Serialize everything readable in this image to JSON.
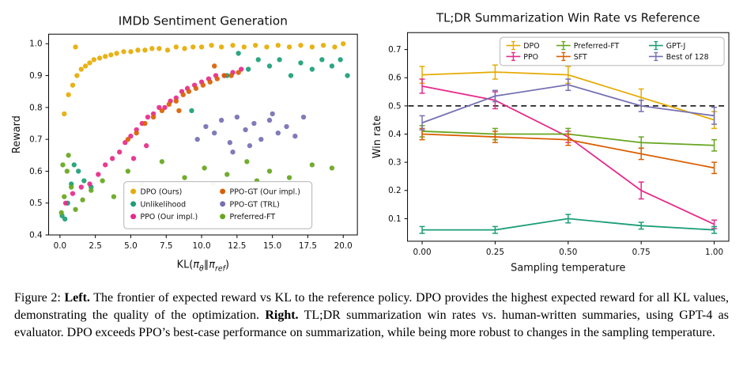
{
  "figure": {
    "caption": {
      "segments": [
        {
          "text": "Figure 2: ",
          "bold": false
        },
        {
          "text": "Left.",
          "bold": true
        },
        {
          "text": " The frontier of expected reward vs KL to the reference policy. DPO provides the highest expected reward for all KL values, demonstrating the quality of the optimization. ",
          "bold": false
        },
        {
          "text": "Right.",
          "bold": true
        },
        {
          "text": " TL;DR summarization win rates vs. human-written summaries, using GPT-4 as evaluator. DPO exceeds PPO’s best-case performance on summarization, while being more robust to changes in the sampling temperature.",
          "bold": false
        }
      ]
    }
  },
  "chart_data": [
    {
      "type": "scatter",
      "title": "IMDb Sentiment Generation",
      "ylabel": "Reward",
      "xlabel_plain": "KL(πθ∥πref)",
      "xlabel_parts": [
        {
          "t": "KL("
        },
        {
          "t": "π",
          "i": true
        },
        {
          "t": "θ",
          "i": true,
          "sub": true
        },
        {
          "t": "∥"
        },
        {
          "t": "π",
          "i": true
        },
        {
          "t": "ref",
          "i": true,
          "sub": true
        },
        {
          "t": ")"
        }
      ],
      "xlim": [
        -0.8,
        21.0
      ],
      "ylim": [
        0.4,
        1.03
      ],
      "xticks": [
        0.0,
        2.5,
        5.0,
        7.5,
        10.0,
        12.5,
        15.0,
        17.5,
        20.0
      ],
      "xtick_labels": [
        "0.0",
        "2.5",
        "5.0",
        "7.5",
        "10.0",
        "12.5",
        "15.0",
        "17.5",
        "20.0"
      ],
      "yticks": [
        0.4,
        0.5,
        0.6,
        0.7,
        0.8,
        0.9,
        1.0
      ],
      "ytick_labels": [
        "0.4",
        "0.5",
        "0.6",
        "0.7",
        "0.8",
        "0.9",
        "1.0"
      ],
      "grid": false,
      "legend_position": "lower center",
      "series": [
        {
          "name": "DPO (Ours)",
          "color": "#e6ab02",
          "points": [
            [
              0.3,
              0.78
            ],
            [
              0.6,
              0.84
            ],
            [
              0.9,
              0.87
            ],
            [
              1.1,
              0.99
            ],
            [
              1.2,
              0.9
            ],
            [
              1.5,
              0.92
            ],
            [
              1.8,
              0.93
            ],
            [
              2.1,
              0.94
            ],
            [
              2.4,
              0.95
            ],
            [
              2.8,
              0.955
            ],
            [
              3.2,
              0.96
            ],
            [
              3.6,
              0.965
            ],
            [
              4.0,
              0.97
            ],
            [
              4.5,
              0.975
            ],
            [
              5.0,
              0.975
            ],
            [
              5.5,
              0.98
            ],
            [
              6.0,
              0.98
            ],
            [
              6.5,
              0.985
            ],
            [
              7.0,
              0.985
            ],
            [
              7.6,
              0.98
            ],
            [
              8.2,
              0.99
            ],
            [
              8.8,
              0.985
            ],
            [
              9.4,
              0.99
            ],
            [
              10.0,
              0.99
            ],
            [
              10.7,
              0.995
            ],
            [
              11.4,
              0.99
            ],
            [
              12.2,
              0.995
            ],
            [
              13.0,
              0.99
            ],
            [
              13.8,
              0.995
            ],
            [
              14.6,
              0.99
            ],
            [
              15.4,
              0.995
            ],
            [
              16.2,
              0.99
            ],
            [
              17.0,
              0.995
            ],
            [
              17.8,
              0.99
            ],
            [
              18.6,
              0.995
            ],
            [
              19.4,
              0.99
            ],
            [
              20.0,
              1.0
            ]
          ]
        },
        {
          "name": "Unlikelihood",
          "color": "#1b9e77",
          "points": [
            [
              0.15,
              0.46
            ],
            [
              0.35,
              0.45
            ],
            [
              0.55,
              0.5
            ],
            [
              0.8,
              0.56
            ],
            [
              1.0,
              0.62
            ],
            [
              1.3,
              0.6
            ],
            [
              1.7,
              0.57
            ],
            [
              2.2,
              0.55
            ],
            [
              9.3,
              0.79
            ],
            [
              11.8,
              0.9
            ],
            [
              12.6,
              0.97
            ],
            [
              13.3,
              0.92
            ],
            [
              14.0,
              0.95
            ],
            [
              14.8,
              0.93
            ],
            [
              15.5,
              0.95
            ],
            [
              16.3,
              0.9
            ],
            [
              17.0,
              0.94
            ],
            [
              17.8,
              0.92
            ],
            [
              18.5,
              0.95
            ],
            [
              19.2,
              0.93
            ],
            [
              19.8,
              0.95
            ],
            [
              20.3,
              0.9
            ]
          ]
        },
        {
          "name": "PPO (Our impl.)",
          "color": "#e7298a",
          "points": [
            [
              0.4,
              0.5
            ],
            [
              0.9,
              0.53
            ],
            [
              1.5,
              0.55
            ],
            [
              2.1,
              0.56
            ],
            [
              2.7,
              0.59
            ],
            [
              3.2,
              0.62
            ],
            [
              3.7,
              0.64
            ],
            [
              4.2,
              0.66
            ],
            [
              4.6,
              0.69
            ],
            [
              5.0,
              0.71
            ],
            [
              5.4,
              0.73
            ],
            [
              5.8,
              0.75
            ],
            [
              6.2,
              0.77
            ],
            [
              6.6,
              0.78
            ],
            [
              7.0,
              0.8
            ],
            [
              7.4,
              0.8
            ],
            [
              7.8,
              0.82
            ],
            [
              8.2,
              0.83
            ],
            [
              8.6,
              0.85
            ],
            [
              9.0,
              0.86
            ],
            [
              9.5,
              0.87
            ],
            [
              10.0,
              0.88
            ],
            [
              10.5,
              0.89
            ],
            [
              11.0,
              0.9
            ],
            [
              11.6,
              0.9
            ],
            [
              12.2,
              0.91
            ],
            [
              12.8,
              0.92
            ],
            [
              5.2,
              0.64
            ],
            [
              6.1,
              0.68
            ]
          ]
        },
        {
          "name": "PPO-GT (Our impl.)",
          "color": "#d95f02",
          "points": [
            [
              4.8,
              0.7
            ],
            [
              5.4,
              0.72
            ],
            [
              6.0,
              0.75
            ],
            [
              6.6,
              0.77
            ],
            [
              7.2,
              0.79
            ],
            [
              7.7,
              0.81
            ],
            [
              8.2,
              0.82
            ],
            [
              8.7,
              0.84
            ],
            [
              9.1,
              0.85
            ],
            [
              9.6,
              0.86
            ],
            [
              10.1,
              0.87
            ],
            [
              10.6,
              0.88
            ],
            [
              11.1,
              0.89
            ],
            [
              11.6,
              0.9
            ],
            [
              12.1,
              0.9
            ],
            [
              12.6,
              0.91
            ],
            [
              8.4,
              0.79
            ],
            [
              10.9,
              0.93
            ]
          ]
        },
        {
          "name": "PPO-GT (TRL)",
          "color": "#7570b3",
          "points": [
            [
              9.7,
              0.7
            ],
            [
              10.3,
              0.74
            ],
            [
              10.9,
              0.72
            ],
            [
              11.4,
              0.76
            ],
            [
              12.0,
              0.69
            ],
            [
              12.5,
              0.77
            ],
            [
              13.1,
              0.73
            ],
            [
              13.7,
              0.75
            ],
            [
              14.2,
              0.7
            ],
            [
              14.8,
              0.76
            ],
            [
              15.4,
              0.72
            ],
            [
              16.0,
              0.74
            ],
            [
              16.6,
              0.71
            ],
            [
              17.2,
              0.77
            ],
            [
              12.2,
              0.66
            ],
            [
              13.4,
              0.68
            ],
            [
              15.0,
              0.78
            ]
          ]
        },
        {
          "name": "Preferred-FT",
          "color": "#66a61e",
          "points": [
            [
              0.1,
              0.47
            ],
            [
              0.3,
              0.52
            ],
            [
              0.5,
              0.6
            ],
            [
              0.8,
              0.55
            ],
            [
              1.1,
              0.48
            ],
            [
              1.6,
              0.51
            ],
            [
              2.2,
              0.54
            ],
            [
              3.0,
              0.57
            ],
            [
              3.8,
              0.52
            ],
            [
              4.8,
              0.6
            ],
            [
              5.8,
              0.56
            ],
            [
              7.2,
              0.63
            ],
            [
              8.8,
              0.58
            ],
            [
              10.2,
              0.61
            ],
            [
              11.8,
              0.59
            ],
            [
              13.2,
              0.63
            ],
            [
              14.8,
              0.6
            ],
            [
              16.2,
              0.58
            ],
            [
              17.8,
              0.62
            ],
            [
              19.2,
              0.61
            ],
            [
              10.8,
              0.56
            ],
            [
              13.9,
              0.57
            ],
            [
              0.2,
              0.62
            ],
            [
              0.6,
              0.65
            ]
          ]
        }
      ]
    },
    {
      "type": "line",
      "title": "TL;DR Summarization Win Rate vs Reference",
      "xlabel": "Sampling temperature",
      "ylabel": "Win rate",
      "xlim": [
        -0.05,
        1.05
      ],
      "ylim": [
        0.02,
        0.76
      ],
      "xticks": [
        0.0,
        0.25,
        0.5,
        0.75,
        1.0
      ],
      "xtick_labels": [
        "0.00",
        "0.25",
        "0.50",
        "0.75",
        "1.00"
      ],
      "yticks": [
        0.1,
        0.2,
        0.3,
        0.4,
        0.5,
        0.6,
        0.7
      ],
      "ytick_labels": [
        "0.1",
        "0.2",
        "0.3",
        "0.4",
        "0.5",
        "0.6",
        "0.7"
      ],
      "hline": 0.5,
      "hline_style": "dashed",
      "grid": false,
      "legend_position": "upper right",
      "x": [
        0.0,
        0.25,
        0.5,
        0.75,
        1.0
      ],
      "series": [
        {
          "name": "DPO",
          "color": "#e6ab02",
          "values": [
            0.61,
            0.62,
            0.61,
            0.53,
            0.45
          ],
          "err": [
            0.03,
            0.025,
            0.03,
            0.03,
            0.03
          ]
        },
        {
          "name": "PPO",
          "color": "#e7298a",
          "values": [
            0.57,
            0.52,
            0.39,
            0.2,
            0.08
          ],
          "err": [
            0.025,
            0.03,
            0.02,
            0.03,
            0.015
          ]
        },
        {
          "name": "Preferred-FT",
          "color": "#66a61e",
          "values": [
            0.41,
            0.4,
            0.4,
            0.37,
            0.36
          ],
          "err": [
            0.02,
            0.02,
            0.02,
            0.02,
            0.02
          ]
        },
        {
          "name": "SFT",
          "color": "#d95f02",
          "values": [
            0.4,
            0.39,
            0.38,
            0.33,
            0.28
          ],
          "err": [
            0.02,
            0.02,
            0.02,
            0.02,
            0.02
          ]
        },
        {
          "name": "GPT-J",
          "color": "#1b9e77",
          "values": [
            0.06,
            0.06,
            0.1,
            0.075,
            0.06
          ],
          "err": [
            0.012,
            0.012,
            0.015,
            0.012,
            0.012
          ]
        },
        {
          "name": "Best of 128",
          "color": "#7570b3",
          "values": [
            0.44,
            0.535,
            0.575,
            0.5,
            0.465
          ],
          "err": [
            0.025,
            0.02,
            0.02,
            0.02,
            0.03
          ]
        }
      ]
    }
  ]
}
